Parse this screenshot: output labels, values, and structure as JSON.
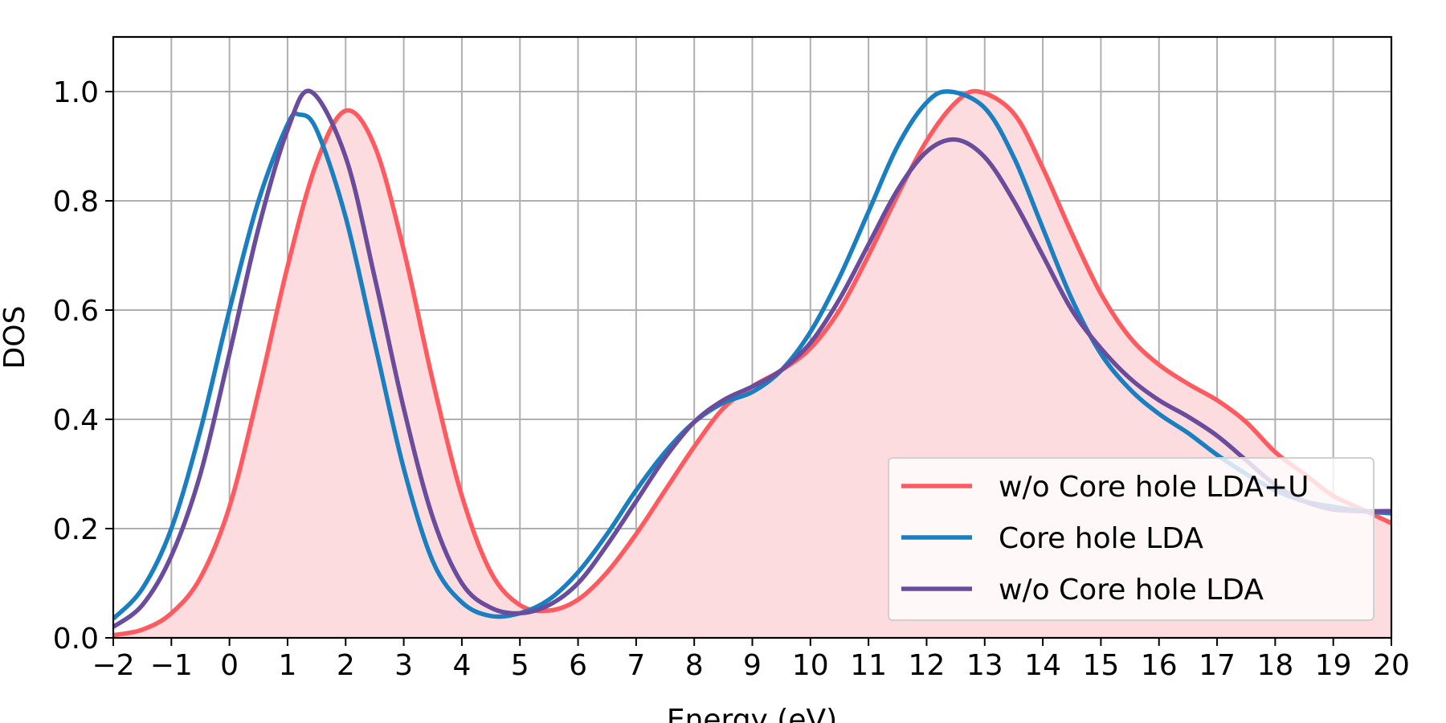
{
  "chart_data": {
    "type": "line",
    "title": "",
    "xlabel": "Energy (eV)",
    "ylabel": "DOS",
    "xlim": [
      -2,
      20
    ],
    "ylim": [
      0,
      1.1
    ],
    "xticks": [
      -2,
      -1,
      0,
      1,
      2,
      3,
      4,
      5,
      6,
      7,
      8,
      9,
      10,
      11,
      12,
      13,
      14,
      15,
      16,
      17,
      18,
      19,
      20
    ],
    "xtick_labels": [
      "−2",
      "−1",
      "0",
      "1",
      "2",
      "3",
      "4",
      "5",
      "6",
      "7",
      "8",
      "9",
      "10",
      "11",
      "12",
      "13",
      "14",
      "15",
      "16",
      "17",
      "18",
      "19",
      "20"
    ],
    "yticks": [
      0.0,
      0.2,
      0.4,
      0.6,
      0.8,
      1.0
    ],
    "ytick_labels": [
      "0.0",
      "0.2",
      "0.4",
      "0.6",
      "0.8",
      "1.0"
    ],
    "grid": true,
    "legend_position": "lower-right",
    "series": [
      {
        "name": "w/o Core hole LDA+U",
        "color": "#ff5a5f",
        "filled": true,
        "fill_color": "#fddcdf",
        "points": [
          [
            -2,
            0.005
          ],
          [
            -1.5,
            0.015
          ],
          [
            -1,
            0.045
          ],
          [
            -0.5,
            0.11
          ],
          [
            0,
            0.24
          ],
          [
            0.5,
            0.45
          ],
          [
            1,
            0.68
          ],
          [
            1.5,
            0.87
          ],
          [
            2,
            0.965
          ],
          [
            2.5,
            0.9
          ],
          [
            3,
            0.71
          ],
          [
            3.5,
            0.47
          ],
          [
            4,
            0.26
          ],
          [
            4.5,
            0.12
          ],
          [
            5,
            0.06
          ],
          [
            5.5,
            0.05
          ],
          [
            6,
            0.07
          ],
          [
            6.5,
            0.12
          ],
          [
            7,
            0.19
          ],
          [
            7.5,
            0.27
          ],
          [
            8,
            0.35
          ],
          [
            8.5,
            0.42
          ],
          [
            9,
            0.46
          ],
          [
            9.5,
            0.49
          ],
          [
            10,
            0.53
          ],
          [
            10.5,
            0.6
          ],
          [
            11,
            0.7
          ],
          [
            11.5,
            0.81
          ],
          [
            12,
            0.91
          ],
          [
            12.5,
            0.98
          ],
          [
            12.9,
            1.0
          ],
          [
            13.5,
            0.96
          ],
          [
            14,
            0.86
          ],
          [
            14.5,
            0.74
          ],
          [
            15,
            0.63
          ],
          [
            15.5,
            0.55
          ],
          [
            16,
            0.5
          ],
          [
            16.5,
            0.465
          ],
          [
            17,
            0.435
          ],
          [
            17.5,
            0.395
          ],
          [
            18,
            0.34
          ],
          [
            18.5,
            0.3
          ],
          [
            19,
            0.26
          ],
          [
            19.5,
            0.235
          ],
          [
            20,
            0.21
          ]
        ]
      },
      {
        "name": "Core hole LDA",
        "color": "#1a7fc1",
        "filled": false,
        "points": [
          [
            -2,
            0.035
          ],
          [
            -1.5,
            0.09
          ],
          [
            -1,
            0.2
          ],
          [
            -0.5,
            0.38
          ],
          [
            0,
            0.6
          ],
          [
            0.5,
            0.8
          ],
          [
            1,
            0.94
          ],
          [
            1.2,
            0.958
          ],
          [
            1.5,
            0.93
          ],
          [
            2,
            0.77
          ],
          [
            2.5,
            0.54
          ],
          [
            3,
            0.31
          ],
          [
            3.5,
            0.14
          ],
          [
            4,
            0.065
          ],
          [
            4.5,
            0.04
          ],
          [
            5,
            0.045
          ],
          [
            5.5,
            0.07
          ],
          [
            6,
            0.12
          ],
          [
            6.5,
            0.19
          ],
          [
            7,
            0.27
          ],
          [
            7.5,
            0.34
          ],
          [
            8,
            0.395
          ],
          [
            8.5,
            0.43
          ],
          [
            9,
            0.45
          ],
          [
            9.5,
            0.49
          ],
          [
            10,
            0.56
          ],
          [
            10.5,
            0.66
          ],
          [
            11,
            0.78
          ],
          [
            11.5,
            0.9
          ],
          [
            12,
            0.98
          ],
          [
            12.4,
            1.0
          ],
          [
            13,
            0.97
          ],
          [
            13.5,
            0.88
          ],
          [
            14,
            0.75
          ],
          [
            14.5,
            0.62
          ],
          [
            15,
            0.52
          ],
          [
            15.5,
            0.455
          ],
          [
            16,
            0.41
          ],
          [
            16.5,
            0.375
          ],
          [
            17,
            0.335
          ],
          [
            17.5,
            0.3
          ],
          [
            18,
            0.27
          ],
          [
            18.5,
            0.25
          ],
          [
            19,
            0.24
          ],
          [
            19.5,
            0.232
          ],
          [
            20,
            0.228
          ]
        ]
      },
      {
        "name": "w/o Core hole LDA",
        "color": "#6a4c9c",
        "filled": false,
        "points": [
          [
            -2,
            0.02
          ],
          [
            -1.5,
            0.06
          ],
          [
            -1,
            0.15
          ],
          [
            -0.5,
            0.3
          ],
          [
            0,
            0.52
          ],
          [
            0.5,
            0.75
          ],
          [
            1,
            0.93
          ],
          [
            1.4,
            1.0
          ],
          [
            2,
            0.88
          ],
          [
            2.5,
            0.66
          ],
          [
            3,
            0.42
          ],
          [
            3.5,
            0.22
          ],
          [
            4,
            0.1
          ],
          [
            4.5,
            0.055
          ],
          [
            5,
            0.045
          ],
          [
            5.5,
            0.06
          ],
          [
            6,
            0.1
          ],
          [
            6.5,
            0.17
          ],
          [
            7,
            0.25
          ],
          [
            7.5,
            0.33
          ],
          [
            8,
            0.395
          ],
          [
            8.5,
            0.435
          ],
          [
            9,
            0.46
          ],
          [
            9.5,
            0.49
          ],
          [
            10,
            0.54
          ],
          [
            10.5,
            0.62
          ],
          [
            11,
            0.72
          ],
          [
            11.5,
            0.82
          ],
          [
            12,
            0.89
          ],
          [
            12.5,
            0.912
          ],
          [
            13,
            0.88
          ],
          [
            13.5,
            0.8
          ],
          [
            14,
            0.7
          ],
          [
            14.5,
            0.6
          ],
          [
            15,
            0.53
          ],
          [
            15.5,
            0.475
          ],
          [
            16,
            0.435
          ],
          [
            16.5,
            0.405
          ],
          [
            17,
            0.37
          ],
          [
            17.5,
            0.325
          ],
          [
            18,
            0.28
          ],
          [
            18.5,
            0.25
          ],
          [
            19,
            0.235
          ],
          [
            19.5,
            0.232
          ],
          [
            20,
            0.232
          ]
        ]
      }
    ]
  }
}
